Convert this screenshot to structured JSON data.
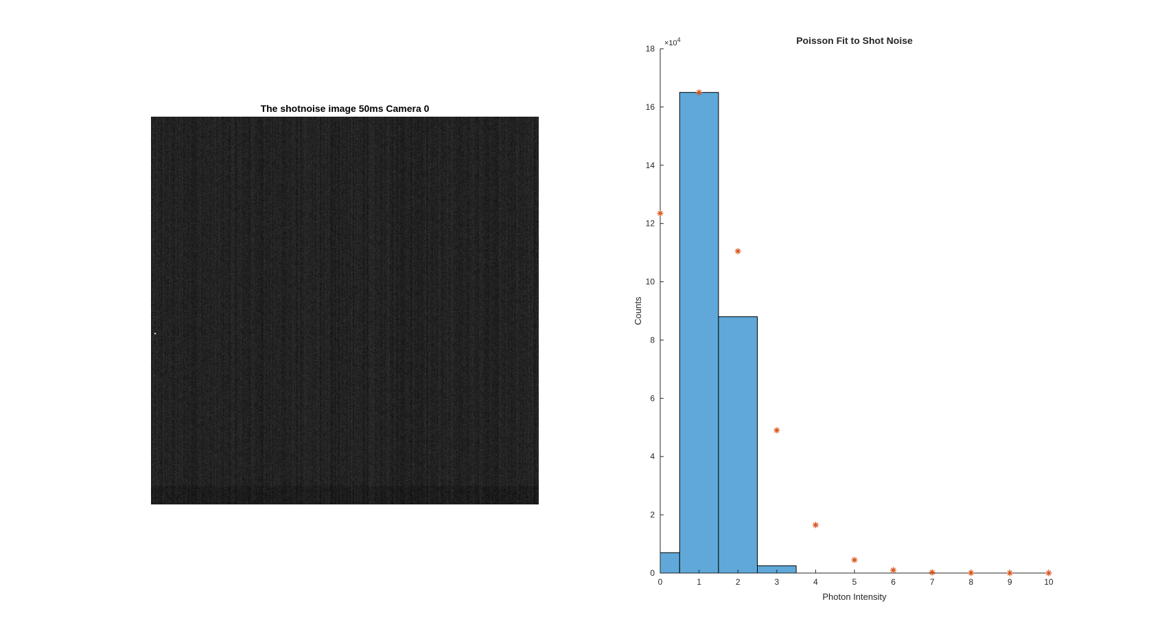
{
  "image_panel": {
    "title": "The shotnoise image 50ms Camera 0"
  },
  "chart_data": {
    "type": "bar",
    "title": "Poisson Fit to Shot Noise",
    "xlabel": "Photon Intensity",
    "ylabel": "Counts",
    "y_exponent_label": "×10",
    "y_exponent_power": "4",
    "xlim": [
      0,
      10
    ],
    "ylim": [
      0,
      180000
    ],
    "x_ticks": [
      "0",
      "1",
      "2",
      "3",
      "4",
      "5",
      "6",
      "7",
      "8",
      "9",
      "10"
    ],
    "y_ticks": [
      "0",
      "2",
      "4",
      "6",
      "8",
      "10",
      "12",
      "14",
      "16",
      "18"
    ],
    "grid": false,
    "colors": {
      "bar_fill": "#5fa8d9",
      "bar_edge": "#000000",
      "fit_marker": "#d95319"
    },
    "series": [
      {
        "kind": "histogram",
        "bin_edges": [
          0,
          0.5,
          1.5,
          2.5,
          3.5,
          4.5,
          5.5,
          6.5,
          7.5,
          8.5,
          9.5,
          10
        ],
        "values": [
          7000,
          165000,
          88000,
          2500,
          0,
          0,
          0,
          0,
          0,
          0,
          0
        ]
      },
      {
        "kind": "poisson-fit",
        "marker": "asterisk",
        "x": [
          0,
          1,
          2,
          3,
          4,
          5,
          6,
          7,
          8,
          9,
          10
        ],
        "values": [
          123500,
          165000,
          110500,
          49000,
          16500,
          4500,
          1000,
          200,
          50,
          10,
          0
        ]
      }
    ]
  }
}
